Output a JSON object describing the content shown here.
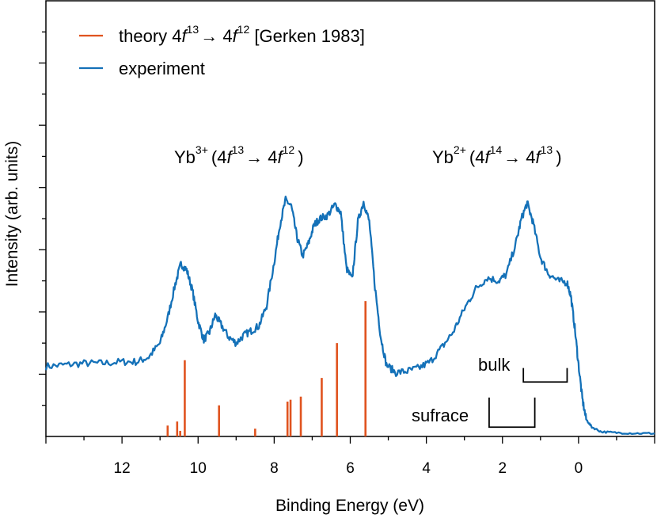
{
  "chart_data": {
    "type": "line",
    "xlabel": "Binding Energy (eV)",
    "ylabel": "Intensity (arb. units)",
    "xlim": [
      14,
      -2
    ],
    "x_reversed": true,
    "ylim": [
      0,
      14
    ],
    "x_tick_labels": [
      {
        "x": 12,
        "label": "12"
      },
      {
        "x": 10,
        "label": "10"
      },
      {
        "x": 8,
        "label": "8"
      },
      {
        "x": 6,
        "label": "6"
      },
      {
        "x": 4,
        "label": "4"
      },
      {
        "x": 2,
        "label": "2"
      },
      {
        "x": 0,
        "label": "0"
      }
    ],
    "legend": {
      "placement": "top-left",
      "entries": [
        {
          "series": "theory",
          "text": "theory 4",
          "f": "f",
          "sup1": "13",
          "arrow": "→",
          "mid": " 4",
          "sup2": "12",
          "tail": " [Gerken 1983]"
        },
        {
          "series": "experiment",
          "text": "experiment"
        }
      ]
    },
    "annotations": {
      "yb3": {
        "base": "Yb",
        "ion": "3+",
        "open": "(4",
        "f": "f",
        "s1": "13",
        "arrow": "→ 4",
        "s2": "12",
        "close": ")"
      },
      "yb2": {
        "base": "Yb",
        "ion": "2+",
        "open": "(4",
        "f": "f",
        "s1": "14",
        "arrow": "→ 4",
        "s2": "13",
        "close": ")"
      },
      "bulk": {
        "label": "bulk",
        "x_from": 1.45,
        "x_to": 0.3,
        "y_top": 2.2,
        "y_bottom": 1.75
      },
      "surface": {
        "label": "sufrace",
        "x_from": 2.35,
        "x_to": 1.15,
        "y_top": 1.25,
        "y_bottom": 0.3
      }
    },
    "series": [
      {
        "name": "theory",
        "kind": "stick",
        "color": "#e0531f",
        "points": [
          {
            "x": 10.8,
            "y": 0.35
          },
          {
            "x": 10.55,
            "y": 0.48
          },
          {
            "x": 10.47,
            "y": 0.18
          },
          {
            "x": 10.35,
            "y": 2.45
          },
          {
            "x": 9.45,
            "y": 1.0
          },
          {
            "x": 8.5,
            "y": 0.25
          },
          {
            "x": 7.65,
            "y": 1.12
          },
          {
            "x": 7.57,
            "y": 1.18
          },
          {
            "x": 7.3,
            "y": 1.28
          },
          {
            "x": 6.75,
            "y": 1.88
          },
          {
            "x": 6.35,
            "y": 3.0
          },
          {
            "x": 5.6,
            "y": 4.35
          }
        ]
      },
      {
        "name": "experiment",
        "kind": "line",
        "color": "#1471b8",
        "points": [
          {
            "x": 14.0,
            "y": 2.25
          },
          {
            "x": 13.5,
            "y": 2.3
          },
          {
            "x": 13.0,
            "y": 2.35
          },
          {
            "x": 12.5,
            "y": 2.35
          },
          {
            "x": 12.0,
            "y": 2.4
          },
          {
            "x": 11.6,
            "y": 2.4
          },
          {
            "x": 11.3,
            "y": 2.55
          },
          {
            "x": 11.0,
            "y": 3.0
          },
          {
            "x": 10.8,
            "y": 3.8
          },
          {
            "x": 10.6,
            "y": 4.9
          },
          {
            "x": 10.45,
            "y": 5.55
          },
          {
            "x": 10.3,
            "y": 5.35
          },
          {
            "x": 10.15,
            "y": 4.7
          },
          {
            "x": 10.0,
            "y": 3.7
          },
          {
            "x": 9.85,
            "y": 3.1
          },
          {
            "x": 9.7,
            "y": 3.35
          },
          {
            "x": 9.55,
            "y": 3.9
          },
          {
            "x": 9.4,
            "y": 3.6
          },
          {
            "x": 9.2,
            "y": 3.2
          },
          {
            "x": 9.0,
            "y": 3.0
          },
          {
            "x": 8.8,
            "y": 3.25
          },
          {
            "x": 8.6,
            "y": 3.4
          },
          {
            "x": 8.4,
            "y": 3.55
          },
          {
            "x": 8.2,
            "y": 4.2
          },
          {
            "x": 8.0,
            "y": 5.6
          },
          {
            "x": 7.85,
            "y": 6.8
          },
          {
            "x": 7.7,
            "y": 7.6
          },
          {
            "x": 7.55,
            "y": 7.4
          },
          {
            "x": 7.4,
            "y": 6.4
          },
          {
            "x": 7.25,
            "y": 5.8
          },
          {
            "x": 7.1,
            "y": 6.2
          },
          {
            "x": 6.95,
            "y": 6.8
          },
          {
            "x": 6.8,
            "y": 7.0
          },
          {
            "x": 6.6,
            "y": 7.1
          },
          {
            "x": 6.4,
            "y": 7.45
          },
          {
            "x": 6.25,
            "y": 7.2
          },
          {
            "x": 6.1,
            "y": 5.4
          },
          {
            "x": 5.95,
            "y": 5.05
          },
          {
            "x": 5.8,
            "y": 6.9
          },
          {
            "x": 5.65,
            "y": 7.55
          },
          {
            "x": 5.5,
            "y": 6.9
          },
          {
            "x": 5.35,
            "y": 4.8
          },
          {
            "x": 5.2,
            "y": 3.2
          },
          {
            "x": 5.05,
            "y": 2.3
          },
          {
            "x": 4.8,
            "y": 2.05
          },
          {
            "x": 4.5,
            "y": 2.1
          },
          {
            "x": 4.2,
            "y": 2.2
          },
          {
            "x": 3.9,
            "y": 2.4
          },
          {
            "x": 3.6,
            "y": 2.85
          },
          {
            "x": 3.3,
            "y": 3.35
          },
          {
            "x": 3.0,
            "y": 4.1
          },
          {
            "x": 2.7,
            "y": 4.75
          },
          {
            "x": 2.4,
            "y": 5.1
          },
          {
            "x": 2.1,
            "y": 5.0
          },
          {
            "x": 1.9,
            "y": 5.2
          },
          {
            "x": 1.65,
            "y": 6.2
          },
          {
            "x": 1.5,
            "y": 7.0
          },
          {
            "x": 1.35,
            "y": 7.5
          },
          {
            "x": 1.2,
            "y": 6.9
          },
          {
            "x": 1.0,
            "y": 5.75
          },
          {
            "x": 0.8,
            "y": 5.25
          },
          {
            "x": 0.55,
            "y": 5.0
          },
          {
            "x": 0.3,
            "y": 4.95
          },
          {
            "x": 0.2,
            "y": 4.5
          },
          {
            "x": 0.1,
            "y": 3.5
          },
          {
            "x": 0.0,
            "y": 2.3
          },
          {
            "x": -0.1,
            "y": 1.2
          },
          {
            "x": -0.2,
            "y": 0.55
          },
          {
            "x": -0.35,
            "y": 0.3
          },
          {
            "x": -0.6,
            "y": 0.15
          },
          {
            "x": -1.0,
            "y": 0.12
          },
          {
            "x": -1.5,
            "y": 0.1
          },
          {
            "x": -2.0,
            "y": 0.1
          }
        ]
      }
    ]
  }
}
